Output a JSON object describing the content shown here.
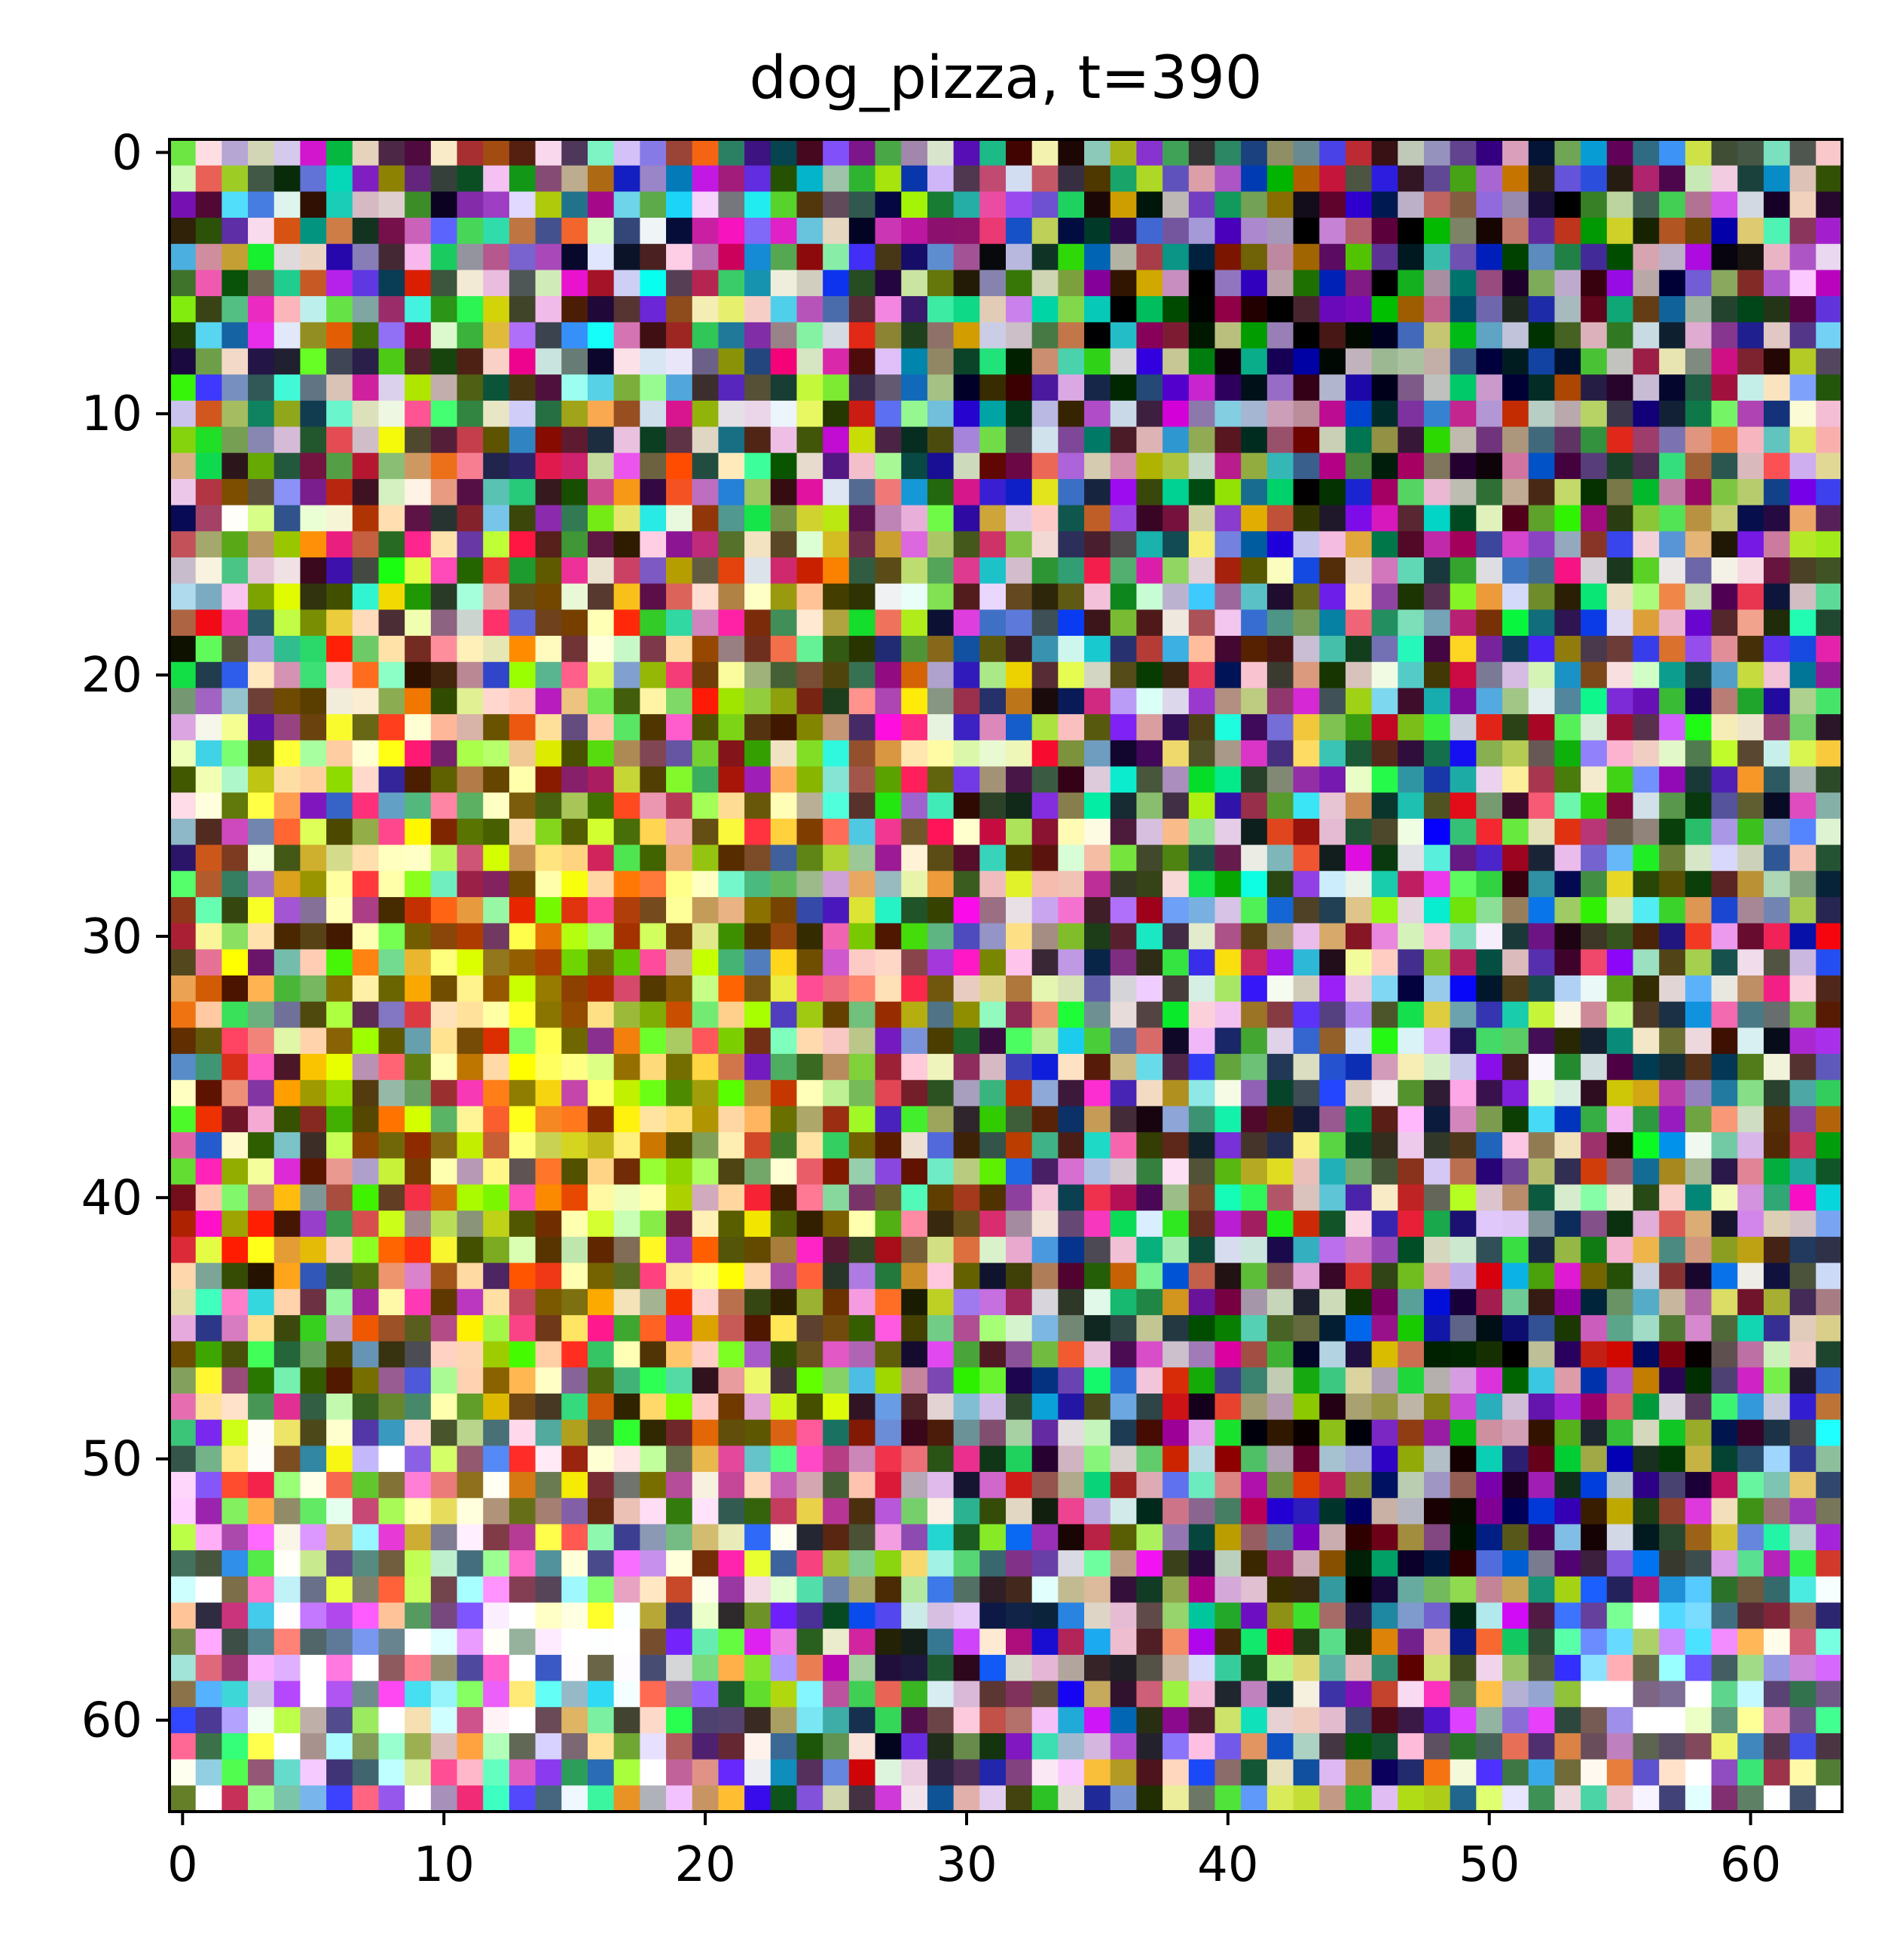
{
  "figure": {
    "title": "dog_pizza, t=390",
    "image_kind": "64x64 RGB noisy diffusion sample shown with imshow",
    "grid_size": 64,
    "x_ticks": [
      0,
      10,
      20,
      30,
      40,
      50,
      60
    ],
    "y_ticks": [
      0,
      10,
      20,
      30,
      40,
      50,
      60
    ],
    "x_range": [
      -0.5,
      63.5
    ],
    "y_range": [
      63.5,
      -0.5
    ],
    "colors": {
      "background": "#ffffff",
      "axis": "#000000",
      "text": "#000000"
    }
  }
}
